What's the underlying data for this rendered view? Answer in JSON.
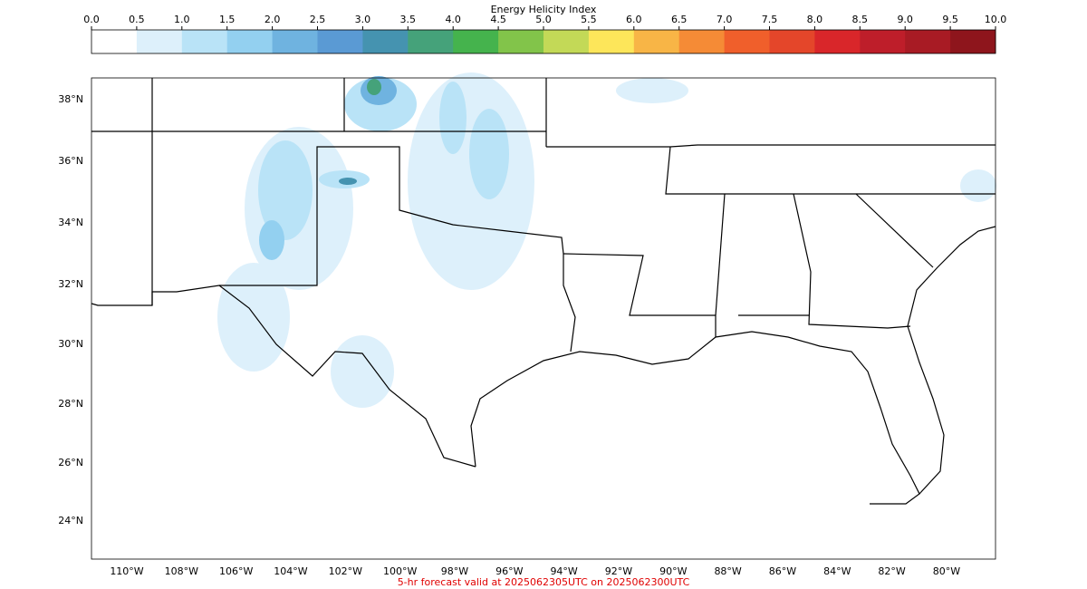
{
  "colorbar": {
    "title": "Energy Helicity Index",
    "ticks": [
      "0.0",
      "0.5",
      "1.0",
      "1.5",
      "2.0",
      "2.5",
      "3.0",
      "3.5",
      "4.0",
      "4.5",
      "5.0",
      "5.5",
      "6.0",
      "6.5",
      "7.0",
      "7.5",
      "8.0",
      "8.5",
      "9.0",
      "9.5",
      "10.0"
    ],
    "colors": [
      "#ffffff",
      "#ddf0fb",
      "#b9e3f7",
      "#93d0f0",
      "#6fb3e0",
      "#5a9ad4",
      "#4593b0",
      "#45a27a",
      "#45b34d",
      "#82c44a",
      "#c3d957",
      "#fde65a",
      "#f8b546",
      "#f58b36",
      "#f05f2b",
      "#e4462a",
      "#d9262a",
      "#be1e2a",
      "#a81b24",
      "#8e151c"
    ]
  },
  "map": {
    "lat_labels": [
      "38°N",
      "36°N",
      "34°N",
      "32°N",
      "30°N",
      "28°N",
      "26°N",
      "24°N"
    ],
    "lon_labels": [
      "110°W",
      "108°W",
      "106°W",
      "104°W",
      "102°W",
      "100°W",
      "98°W",
      "96°W",
      "94°W",
      "92°W",
      "90°W",
      "88°W",
      "86°W",
      "84°W",
      "82°W",
      "80°W"
    ]
  },
  "footer": "5-hr forecast valid at 2025062305UTC on 2025062300UTC"
}
